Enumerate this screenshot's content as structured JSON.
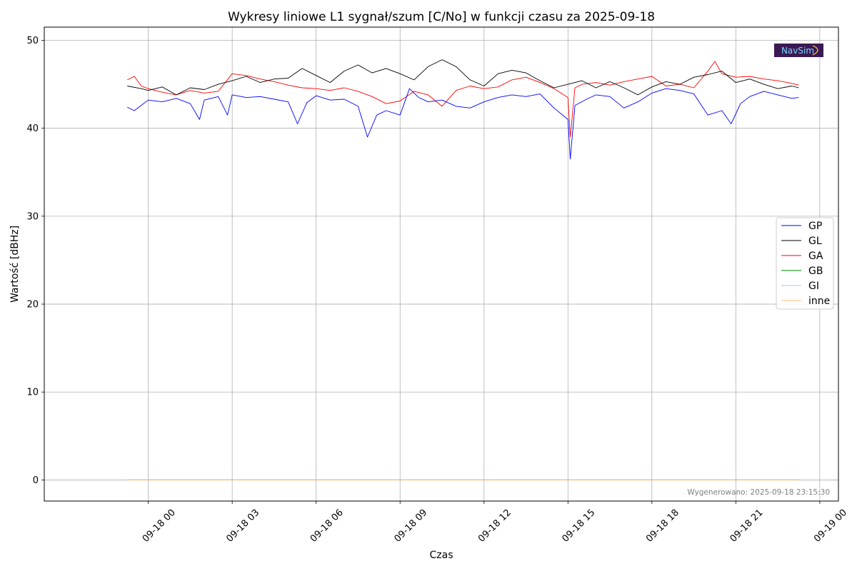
{
  "chart_data": {
    "type": "line",
    "title": "Wykresy liniowe L1 sygnał/szum [C/No] w funkcji czasu za 2025-09-18",
    "xlabel": "Czas",
    "ylabel": "Wartość [dBHz]",
    "ylim": [
      -2.4,
      51.5
    ],
    "yticks": [
      0,
      10,
      20,
      30,
      40,
      50
    ],
    "xlim": [
      "2025-09-17 20:17",
      "2025-09-19 00:40"
    ],
    "xticks": [
      {
        "t": "2025-09-18 00:00",
        "label": "09-18 00"
      },
      {
        "t": "2025-09-18 03:00",
        "label": "09-18 03"
      },
      {
        "t": "2025-09-18 06:00",
        "label": "09-18 06"
      },
      {
        "t": "2025-09-18 09:00",
        "label": "09-18 09"
      },
      {
        "t": "2025-09-18 12:00",
        "label": "09-18 12"
      },
      {
        "t": "2025-09-18 15:00",
        "label": "09-18 15"
      },
      {
        "t": "2025-09-18 18:00",
        "label": "09-18 18"
      },
      {
        "t": "2025-09-18 21:00",
        "label": "09-18 21"
      },
      {
        "t": "2025-09-19 00:00",
        "label": "09-19 00"
      }
    ],
    "grid": true,
    "legend_position": "center-right",
    "series": [
      {
        "name": "GP",
        "color": "#0000ff",
        "points": [
          [
            "2025-09-17 23:15",
            42.4
          ],
          [
            "2025-09-17 23:30",
            42.0
          ],
          [
            "2025-09-17 23:45",
            42.6
          ],
          [
            "2025-09-18 00:00",
            43.2
          ],
          [
            "2025-09-18 00:30",
            43.0
          ],
          [
            "2025-09-18 01:00",
            43.4
          ],
          [
            "2025-09-18 01:30",
            42.8
          ],
          [
            "2025-09-18 01:50",
            41.0
          ],
          [
            "2025-09-18 02:00",
            43.2
          ],
          [
            "2025-09-18 02:30",
            43.6
          ],
          [
            "2025-09-18 02:50",
            41.5
          ],
          [
            "2025-09-18 03:00",
            43.8
          ],
          [
            "2025-09-18 03:30",
            43.5
          ],
          [
            "2025-09-18 04:00",
            43.6
          ],
          [
            "2025-09-18 04:30",
            43.3
          ],
          [
            "2025-09-18 05:00",
            43.0
          ],
          [
            "2025-09-18 05:20",
            40.5
          ],
          [
            "2025-09-18 05:40",
            42.9
          ],
          [
            "2025-09-18 06:00",
            43.7
          ],
          [
            "2025-09-18 06:30",
            43.2
          ],
          [
            "2025-09-18 07:00",
            43.3
          ],
          [
            "2025-09-18 07:30",
            42.5
          ],
          [
            "2025-09-18 07:50",
            39.0
          ],
          [
            "2025-09-18 08:10",
            41.5
          ],
          [
            "2025-09-18 08:30",
            42.0
          ],
          [
            "2025-09-18 09:00",
            41.5
          ],
          [
            "2025-09-18 09:20",
            44.5
          ],
          [
            "2025-09-18 09:40",
            43.5
          ],
          [
            "2025-09-18 10:00",
            43.0
          ],
          [
            "2025-09-18 10:30",
            43.2
          ],
          [
            "2025-09-18 11:00",
            42.5
          ],
          [
            "2025-09-18 11:30",
            42.3
          ],
          [
            "2025-09-18 12:00",
            43.0
          ],
          [
            "2025-09-18 12:30",
            43.5
          ],
          [
            "2025-09-18 13:00",
            43.8
          ],
          [
            "2025-09-18 13:30",
            43.6
          ],
          [
            "2025-09-18 14:00",
            43.9
          ],
          [
            "2025-09-18 14:30",
            42.3
          ],
          [
            "2025-09-18 15:00",
            41.0
          ],
          [
            "2025-09-18 15:05",
            36.5
          ],
          [
            "2025-09-18 15:15",
            42.6
          ],
          [
            "2025-09-18 15:40",
            43.3
          ],
          [
            "2025-09-18 16:00",
            43.8
          ],
          [
            "2025-09-18 16:30",
            43.6
          ],
          [
            "2025-09-18 17:00",
            42.3
          ],
          [
            "2025-09-18 17:30",
            43.0
          ],
          [
            "2025-09-18 18:00",
            44.0
          ],
          [
            "2025-09-18 18:30",
            44.5
          ],
          [
            "2025-09-18 19:00",
            44.3
          ],
          [
            "2025-09-18 19:30",
            43.9
          ],
          [
            "2025-09-18 20:00",
            41.5
          ],
          [
            "2025-09-18 20:30",
            42.0
          ],
          [
            "2025-09-18 20:50",
            40.5
          ],
          [
            "2025-09-18 21:10",
            42.8
          ],
          [
            "2025-09-18 21:30",
            43.6
          ],
          [
            "2025-09-18 22:00",
            44.2
          ],
          [
            "2025-09-18 22:30",
            43.8
          ],
          [
            "2025-09-18 23:00",
            43.4
          ],
          [
            "2025-09-18 23:15",
            43.5
          ]
        ]
      },
      {
        "name": "GL",
        "color": "#000000",
        "points": [
          [
            "2025-09-17 23:15",
            44.8
          ],
          [
            "2025-09-17 23:45",
            44.5
          ],
          [
            "2025-09-18 00:00",
            44.3
          ],
          [
            "2025-09-18 00:30",
            44.7
          ],
          [
            "2025-09-18 01:00",
            43.8
          ],
          [
            "2025-09-18 01:30",
            44.6
          ],
          [
            "2025-09-18 02:00",
            44.4
          ],
          [
            "2025-09-18 02:30",
            45.0
          ],
          [
            "2025-09-18 03:00",
            45.4
          ],
          [
            "2025-09-18 03:30",
            45.9
          ],
          [
            "2025-09-18 04:00",
            45.2
          ],
          [
            "2025-09-18 04:30",
            45.6
          ],
          [
            "2025-09-18 05:00",
            45.7
          ],
          [
            "2025-09-18 05:30",
            46.8
          ],
          [
            "2025-09-18 06:00",
            46.0
          ],
          [
            "2025-09-18 06:30",
            45.2
          ],
          [
            "2025-09-18 07:00",
            46.5
          ],
          [
            "2025-09-18 07:30",
            47.2
          ],
          [
            "2025-09-18 08:00",
            46.3
          ],
          [
            "2025-09-18 08:30",
            46.8
          ],
          [
            "2025-09-18 09:00",
            46.2
          ],
          [
            "2025-09-18 09:30",
            45.5
          ],
          [
            "2025-09-18 10:00",
            47.0
          ],
          [
            "2025-09-18 10:30",
            47.8
          ],
          [
            "2025-09-18 11:00",
            47.0
          ],
          [
            "2025-09-18 11:30",
            45.5
          ],
          [
            "2025-09-18 12:00",
            44.8
          ],
          [
            "2025-09-18 12:30",
            46.2
          ],
          [
            "2025-09-18 13:00",
            46.6
          ],
          [
            "2025-09-18 13:30",
            46.3
          ],
          [
            "2025-09-18 14:00",
            45.4
          ],
          [
            "2025-09-18 14:30",
            44.6
          ],
          [
            "2025-09-18 15:00",
            45.0
          ],
          [
            "2025-09-18 15:30",
            45.4
          ],
          [
            "2025-09-18 16:00",
            44.6
          ],
          [
            "2025-09-18 16:30",
            45.3
          ],
          [
            "2025-09-18 17:00",
            44.6
          ],
          [
            "2025-09-18 17:30",
            43.8
          ],
          [
            "2025-09-18 18:00",
            44.7
          ],
          [
            "2025-09-18 18:30",
            45.3
          ],
          [
            "2025-09-18 19:00",
            45.0
          ],
          [
            "2025-09-18 19:30",
            45.8
          ],
          [
            "2025-09-18 20:00",
            46.1
          ],
          [
            "2025-09-18 20:30",
            46.5
          ],
          [
            "2025-09-18 21:00",
            45.2
          ],
          [
            "2025-09-18 21:30",
            45.6
          ],
          [
            "2025-09-18 22:00",
            45.0
          ],
          [
            "2025-09-18 22:30",
            44.5
          ],
          [
            "2025-09-18 23:00",
            44.8
          ],
          [
            "2025-09-18 23:15",
            44.6
          ]
        ]
      },
      {
        "name": "GA",
        "color": "#ff0000",
        "points": [
          [
            "2025-09-17 23:15",
            45.5
          ],
          [
            "2025-09-17 23:30",
            45.9
          ],
          [
            "2025-09-17 23:45",
            44.8
          ],
          [
            "2025-09-18 00:00",
            44.5
          ],
          [
            "2025-09-18 00:30",
            44.1
          ],
          [
            "2025-09-18 01:00",
            43.8
          ],
          [
            "2025-09-18 01:30",
            44.3
          ],
          [
            "2025-09-18 02:00",
            44.0
          ],
          [
            "2025-09-18 02:30",
            44.2
          ],
          [
            "2025-09-18 03:00",
            46.2
          ],
          [
            "2025-09-18 03:30",
            46.0
          ],
          [
            "2025-09-18 04:00",
            45.6
          ],
          [
            "2025-09-18 04:30",
            45.3
          ],
          [
            "2025-09-18 05:00",
            44.9
          ],
          [
            "2025-09-18 05:30",
            44.6
          ],
          [
            "2025-09-18 06:00",
            44.5
          ],
          [
            "2025-09-18 06:30",
            44.3
          ],
          [
            "2025-09-18 07:00",
            44.6
          ],
          [
            "2025-09-18 07:30",
            44.2
          ],
          [
            "2025-09-18 08:00",
            43.6
          ],
          [
            "2025-09-18 08:30",
            42.8
          ],
          [
            "2025-09-18 09:00",
            43.1
          ],
          [
            "2025-09-18 09:30",
            44.2
          ],
          [
            "2025-09-18 10:00",
            43.8
          ],
          [
            "2025-09-18 10:30",
            42.5
          ],
          [
            "2025-09-18 11:00",
            44.3
          ],
          [
            "2025-09-18 11:30",
            44.8
          ],
          [
            "2025-09-18 12:00",
            44.5
          ],
          [
            "2025-09-18 12:30",
            44.7
          ],
          [
            "2025-09-18 13:00",
            45.5
          ],
          [
            "2025-09-18 13:30",
            45.8
          ],
          [
            "2025-09-18 14:00",
            45.2
          ],
          [
            "2025-09-18 14:30",
            44.5
          ],
          [
            "2025-09-18 15:00",
            43.5
          ],
          [
            "2025-09-18 15:05",
            39.0
          ],
          [
            "2025-09-18 15:15",
            44.6
          ],
          [
            "2025-09-18 15:30",
            45.0
          ],
          [
            "2025-09-18 16:00",
            45.2
          ],
          [
            "2025-09-18 16:30",
            44.9
          ],
          [
            "2025-09-18 17:00",
            45.3
          ],
          [
            "2025-09-18 17:30",
            45.6
          ],
          [
            "2025-09-18 18:00",
            45.9
          ],
          [
            "2025-09-18 18:30",
            44.8
          ],
          [
            "2025-09-18 19:00",
            45.0
          ],
          [
            "2025-09-18 19:30",
            44.6
          ],
          [
            "2025-09-18 20:00",
            46.5
          ],
          [
            "2025-09-18 20:15",
            47.6
          ],
          [
            "2025-09-18 20:30",
            46.2
          ],
          [
            "2025-09-18 21:00",
            45.8
          ],
          [
            "2025-09-18 21:30",
            45.9
          ],
          [
            "2025-09-18 22:00",
            45.6
          ],
          [
            "2025-09-18 22:30",
            45.4
          ],
          [
            "2025-09-18 23:00",
            45.1
          ],
          [
            "2025-09-18 23:15",
            44.9
          ]
        ]
      },
      {
        "name": "GB",
        "color": "#008000",
        "points": [
          [
            "2025-09-17 23:15",
            0
          ],
          [
            "2025-09-18 23:15",
            0
          ]
        ]
      },
      {
        "name": "GI",
        "color": "#a6cee3",
        "points": [
          [
            "2025-09-17 23:15",
            0
          ],
          [
            "2025-09-18 23:15",
            0
          ]
        ]
      },
      {
        "name": "inne",
        "color": "#ffbb78",
        "points": [
          [
            "2025-09-17 23:15",
            0
          ],
          [
            "2025-09-18 23:15",
            0
          ]
        ]
      }
    ],
    "annotations": [
      {
        "text": "Wygenerowano: 2025-09-18 23:15:30",
        "position": "bottom-right"
      }
    ]
  },
  "logo": {
    "text": "NavSim",
    "background": "#3a1a52"
  }
}
